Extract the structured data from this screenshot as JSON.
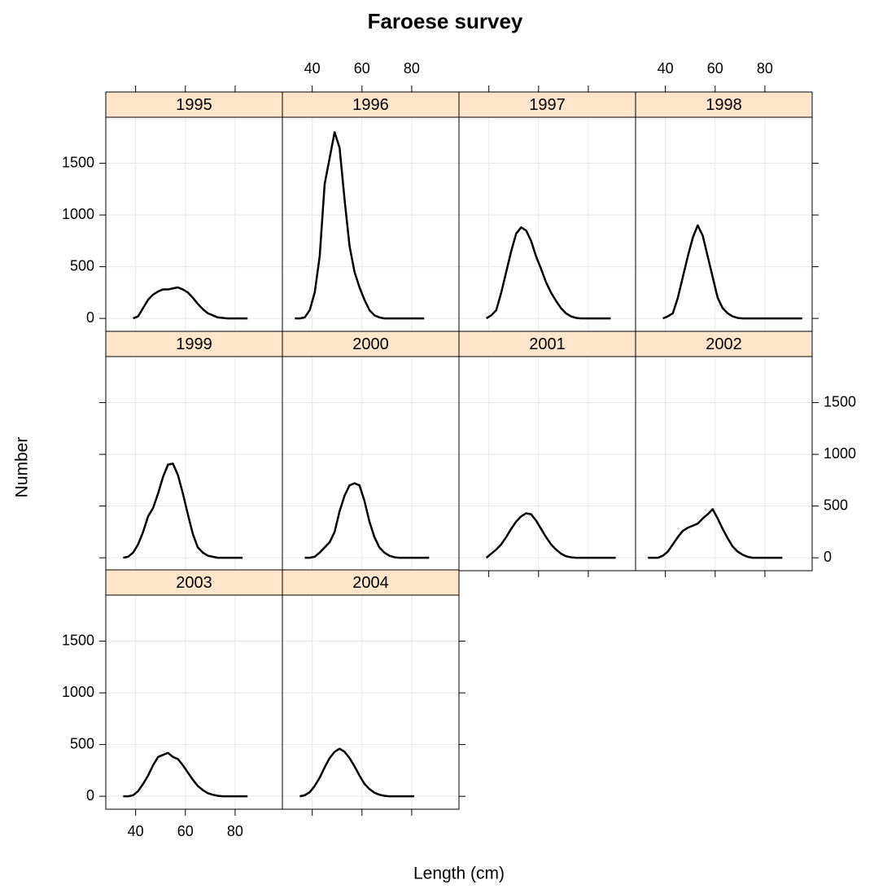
{
  "title": "Faroese survey",
  "x_label": "Length (cm)",
  "y_label": "Number",
  "xlim": [
    28,
    99
  ],
  "xticks": [
    40,
    60,
    80
  ],
  "ylim": [
    -125,
    1945
  ],
  "yticks": [
    0,
    500,
    1000,
    1500
  ],
  "grid": true,
  "strip_color": "#ffe5cc",
  "line_color": "#000000",
  "chart_data": [
    {
      "type": "line",
      "title": "1995",
      "x": [
        39,
        41,
        43,
        45,
        47,
        49,
        51,
        53,
        55,
        57,
        59,
        61,
        63,
        65,
        67,
        69,
        71,
        73,
        75,
        77,
        79,
        81,
        83,
        85
      ],
      "values": [
        0,
        20,
        100,
        180,
        230,
        260,
        280,
        280,
        290,
        300,
        280,
        250,
        200,
        140,
        90,
        50,
        30,
        10,
        5,
        0,
        0,
        0,
        0,
        0
      ]
    },
    {
      "type": "line",
      "title": "1996",
      "x": [
        33,
        35,
        37,
        39,
        41,
        43,
        45,
        47,
        49,
        51,
        53,
        55,
        57,
        59,
        61,
        63,
        65,
        67,
        69,
        71,
        73,
        75,
        77,
        79,
        81,
        83,
        85
      ],
      "values": [
        0,
        0,
        10,
        80,
        250,
        600,
        1300,
        1550,
        1800,
        1650,
        1150,
        700,
        450,
        300,
        180,
        80,
        30,
        10,
        0,
        0,
        0,
        0,
        0,
        0,
        0,
        0,
        0
      ]
    },
    {
      "type": "line",
      "title": "1997",
      "x": [
        39,
        41,
        43,
        45,
        47,
        49,
        51,
        53,
        55,
        57,
        59,
        61,
        63,
        65,
        67,
        69,
        71,
        73,
        75,
        77,
        79,
        81,
        83,
        85,
        87,
        89
      ],
      "values": [
        0,
        30,
        80,
        250,
        450,
        650,
        820,
        880,
        850,
        750,
        600,
        480,
        350,
        250,
        170,
        100,
        50,
        20,
        5,
        0,
        0,
        0,
        0,
        0,
        0,
        0
      ]
    },
    {
      "type": "line",
      "title": "1998",
      "x": [
        39,
        41,
        43,
        45,
        47,
        49,
        51,
        53,
        55,
        57,
        59,
        61,
        63,
        65,
        67,
        69,
        71,
        73,
        75,
        77,
        79,
        81,
        83,
        85,
        87,
        89,
        91,
        93,
        95
      ],
      "values": [
        0,
        20,
        50,
        200,
        400,
        600,
        780,
        900,
        800,
        600,
        400,
        200,
        100,
        50,
        20,
        5,
        0,
        0,
        0,
        0,
        0,
        0,
        0,
        0,
        0,
        0,
        0,
        0,
        0
      ]
    },
    {
      "type": "line",
      "title": "1999",
      "x": [
        35,
        37,
        39,
        41,
        43,
        45,
        47,
        49,
        51,
        53,
        55,
        57,
        59,
        61,
        63,
        65,
        67,
        69,
        71,
        73,
        75,
        77,
        79,
        81,
        83
      ],
      "values": [
        0,
        10,
        50,
        130,
        250,
        400,
        480,
        620,
        780,
        900,
        910,
        800,
        620,
        420,
        230,
        100,
        50,
        20,
        10,
        0,
        0,
        0,
        0,
        0,
        0
      ]
    },
    {
      "type": "line",
      "title": "2000",
      "x": [
        37,
        39,
        41,
        43,
        45,
        47,
        49,
        51,
        53,
        55,
        57,
        59,
        61,
        63,
        65,
        67,
        69,
        71,
        73,
        75,
        77,
        79,
        81,
        83,
        85,
        87
      ],
      "values": [
        0,
        0,
        10,
        50,
        100,
        150,
        250,
        450,
        600,
        700,
        720,
        700,
        550,
        350,
        200,
        100,
        50,
        20,
        5,
        0,
        0,
        0,
        0,
        0,
        0,
        0
      ]
    },
    {
      "type": "line",
      "title": "2001",
      "x": [
        39,
        41,
        43,
        45,
        47,
        49,
        51,
        53,
        55,
        57,
        59,
        61,
        63,
        65,
        67,
        69,
        71,
        73,
        75,
        77,
        79,
        81,
        83,
        85,
        87,
        89,
        91
      ],
      "values": [
        0,
        40,
        80,
        130,
        200,
        280,
        350,
        400,
        430,
        420,
        360,
        280,
        200,
        130,
        80,
        40,
        15,
        5,
        0,
        0,
        0,
        0,
        0,
        0,
        0,
        0,
        0
      ]
    },
    {
      "type": "line",
      "title": "2002",
      "x": [
        33,
        35,
        37,
        39,
        41,
        43,
        45,
        47,
        49,
        51,
        53,
        55,
        57,
        59,
        61,
        63,
        65,
        67,
        69,
        71,
        73,
        75,
        77,
        79,
        81,
        83,
        85,
        87
      ],
      "values": [
        0,
        0,
        0,
        20,
        60,
        130,
        200,
        260,
        290,
        310,
        330,
        380,
        420,
        470,
        380,
        280,
        190,
        110,
        60,
        30,
        10,
        0,
        0,
        0,
        0,
        0,
        0,
        0
      ]
    },
    {
      "type": "line",
      "title": "2003",
      "x": [
        35,
        37,
        39,
        41,
        43,
        45,
        47,
        49,
        51,
        53,
        55,
        57,
        59,
        61,
        63,
        65,
        67,
        69,
        71,
        73,
        75,
        77,
        79,
        81,
        83,
        85
      ],
      "values": [
        0,
        0,
        10,
        50,
        120,
        200,
        300,
        380,
        400,
        420,
        380,
        360,
        300,
        230,
        160,
        100,
        60,
        30,
        15,
        5,
        0,
        0,
        0,
        0,
        0,
        0
      ]
    },
    {
      "type": "line",
      "title": "2004",
      "x": [
        35,
        37,
        39,
        41,
        43,
        45,
        47,
        49,
        51,
        53,
        55,
        57,
        59,
        61,
        63,
        65,
        67,
        69,
        71,
        73,
        75,
        77,
        79,
        81
      ],
      "values": [
        0,
        10,
        40,
        100,
        180,
        280,
        370,
        430,
        460,
        430,
        370,
        290,
        200,
        120,
        70,
        35,
        15,
        5,
        0,
        0,
        0,
        0,
        0,
        0
      ]
    }
  ]
}
